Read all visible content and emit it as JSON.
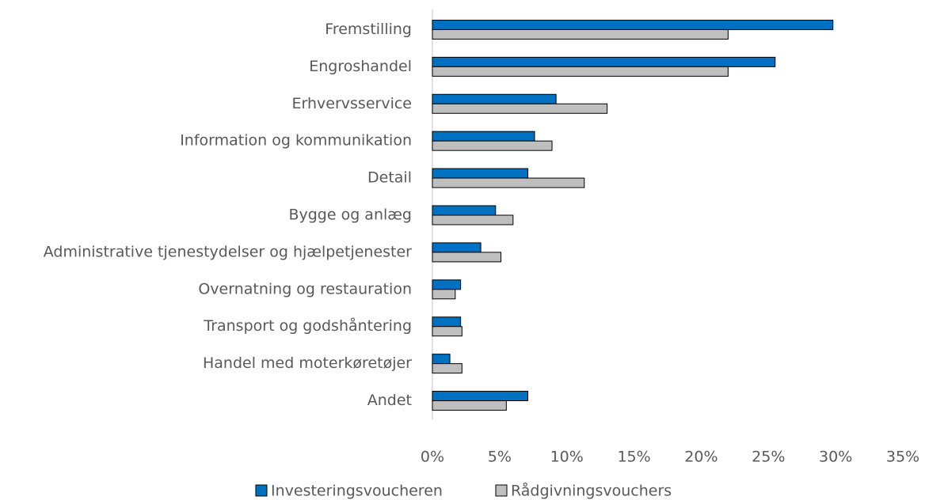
{
  "chart_data": {
    "type": "hbar",
    "categories": [
      "Fremstilling",
      "Engroshandel",
      "Erhvervsservice",
      "Information og kommunikation",
      "Detail",
      "Bygge og anlæg",
      "Administrative tjenestydelser og hjælpetjenester",
      "Overnatning og restauration",
      "Transport og godshåntering",
      "Handel med moterkøretøjer",
      "Andet"
    ],
    "series": [
      {
        "name": "Investeringsvoucheren",
        "color": "#0070c0",
        "values": [
          29.8,
          25.5,
          9.2,
          7.6,
          7.1,
          4.7,
          3.6,
          2.1,
          2.1,
          1.3,
          7.1
        ]
      },
      {
        "name": "Rådgivningsvouchers",
        "color": "#bfbfbf",
        "values": [
          22.0,
          22.0,
          13.0,
          8.9,
          11.3,
          6.0,
          5.1,
          1.7,
          2.2,
          2.2,
          5.5
        ]
      }
    ],
    "xlim": [
      0,
      35
    ],
    "xticks": [
      {
        "value": 0,
        "label": "0%"
      },
      {
        "value": 5,
        "label": "5%"
      },
      {
        "value": 10,
        "label": "10%"
      },
      {
        "value": 15,
        "label": "15%"
      },
      {
        "value": 20,
        "label": "20%"
      },
      {
        "value": 25,
        "label": "25%"
      },
      {
        "value": 30,
        "label": "30%"
      },
      {
        "value": 35,
        "label": "35%"
      }
    ],
    "legend": "bottom"
  }
}
